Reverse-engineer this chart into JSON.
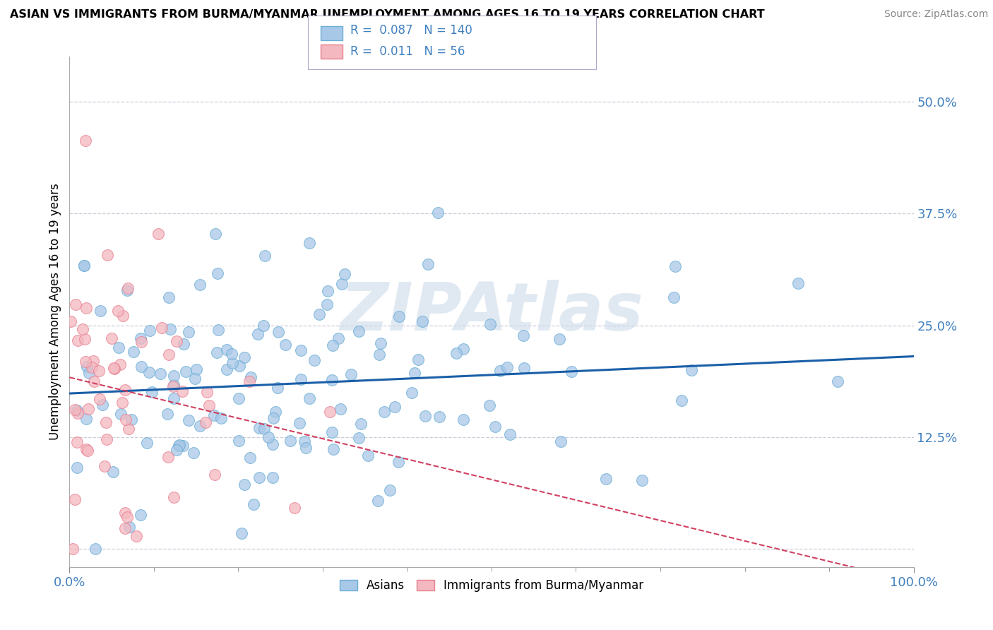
{
  "title": "ASIAN VS IMMIGRANTS FROM BURMA/MYANMAR UNEMPLOYMENT AMONG AGES 16 TO 19 YEARS CORRELATION CHART",
  "source": "Source: ZipAtlas.com",
  "ylabel": "Unemployment Among Ages 16 to 19 years",
  "xlim": [
    0.0,
    1.0
  ],
  "ylim": [
    -0.02,
    0.55
  ],
  "yticks": [
    0.0,
    0.125,
    0.25,
    0.375,
    0.5
  ],
  "ytick_labels": [
    "",
    "12.5%",
    "25.0%",
    "37.5%",
    "50.0%"
  ],
  "xtick_labels": [
    "0.0%",
    "100.0%"
  ],
  "asian_color": "#a8c8e8",
  "asian_edge_color": "#6baed6",
  "burma_color": "#f4b8c0",
  "burma_edge_color": "#e88090",
  "asian_line_color": "#1a5fa8",
  "burma_line_color": "#d04060",
  "asian_R": 0.087,
  "asian_N": 140,
  "burma_R": 0.011,
  "burma_N": 56,
  "legend_label_asian": "Asians",
  "legend_label_burma": "Immigrants from Burma/Myanmar",
  "watermark": "ZIPAtlas",
  "background_color": "#ffffff",
  "grid_color": "#c8c8d8",
  "tick_label_color": "#4080c0",
  "asian_seed": 42,
  "burma_seed": 123
}
